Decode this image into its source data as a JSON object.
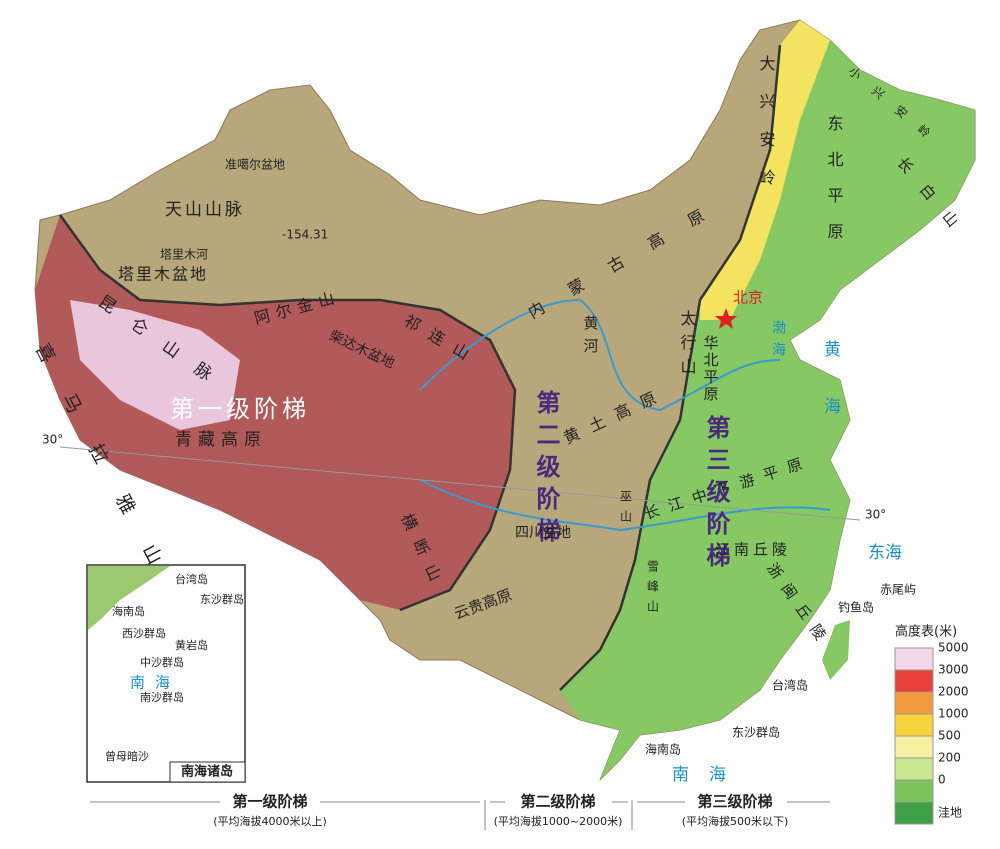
{
  "map": {
    "labels": [
      "准噶尔盆地",
      "天山山脉",
      "-154.31",
      "塔里木河",
      "塔里木盆地",
      "昆仑山脉",
      "阿尔金山",
      "柴达木盆地",
      "祁连山",
      "喜马拉雅山脉",
      "第一级阶梯",
      "青藏高原",
      "横断山",
      "30°",
      "30°",
      "内蒙古高原",
      "黄河",
      "第二级阶梯",
      "黄土高原",
      "太行山",
      "巫山",
      "四川盆地",
      "云贵高原",
      "大兴安岭",
      "小兴安岭",
      "东北平原",
      "长白山",
      "北京",
      "渤海",
      "黄海",
      "华北平原",
      "第三级阶梯",
      "长江中下游平原",
      "雪峰山",
      "江南丘陵",
      "浙闽丘陵",
      "东海",
      "赤尾屿",
      "钓鱼岛",
      "台湾岛",
      "东沙群岛",
      "海南岛",
      "南海"
    ]
  },
  "legend": {
    "title": "高度表(米)",
    "items": [
      {
        "label": "5000",
        "color": "#f2d6ea"
      },
      {
        "label": "3000",
        "color": "#e8413a"
      },
      {
        "label": "2000",
        "color": "#f39a3c"
      },
      {
        "label": "1000",
        "color": "#f8d23c"
      },
      {
        "label": "500",
        "color": "#f7f1a4"
      },
      {
        "label": "200",
        "color": "#c9e890"
      },
      {
        "label": "0",
        "color": "#7cc55c"
      },
      {
        "label": "洼地",
        "color": "#3f9f45"
      }
    ]
  },
  "inset": {
    "labels": [
      "台湾岛",
      "东沙群岛",
      "海南岛",
      "西沙群岛",
      "黄岩岛",
      "中沙群岛",
      "南海",
      "南沙群岛",
      "曾母暗沙"
    ],
    "title": "南海诸岛"
  },
  "steps": [
    {
      "name": "第一级阶梯",
      "note": "(平均海拔4000米以上)"
    },
    {
      "name": "第二级阶梯",
      "note": "(平均海拔1000~2000米)"
    },
    {
      "name": "第三级阶梯",
      "note": "(平均海拔500米以下)"
    }
  ]
}
